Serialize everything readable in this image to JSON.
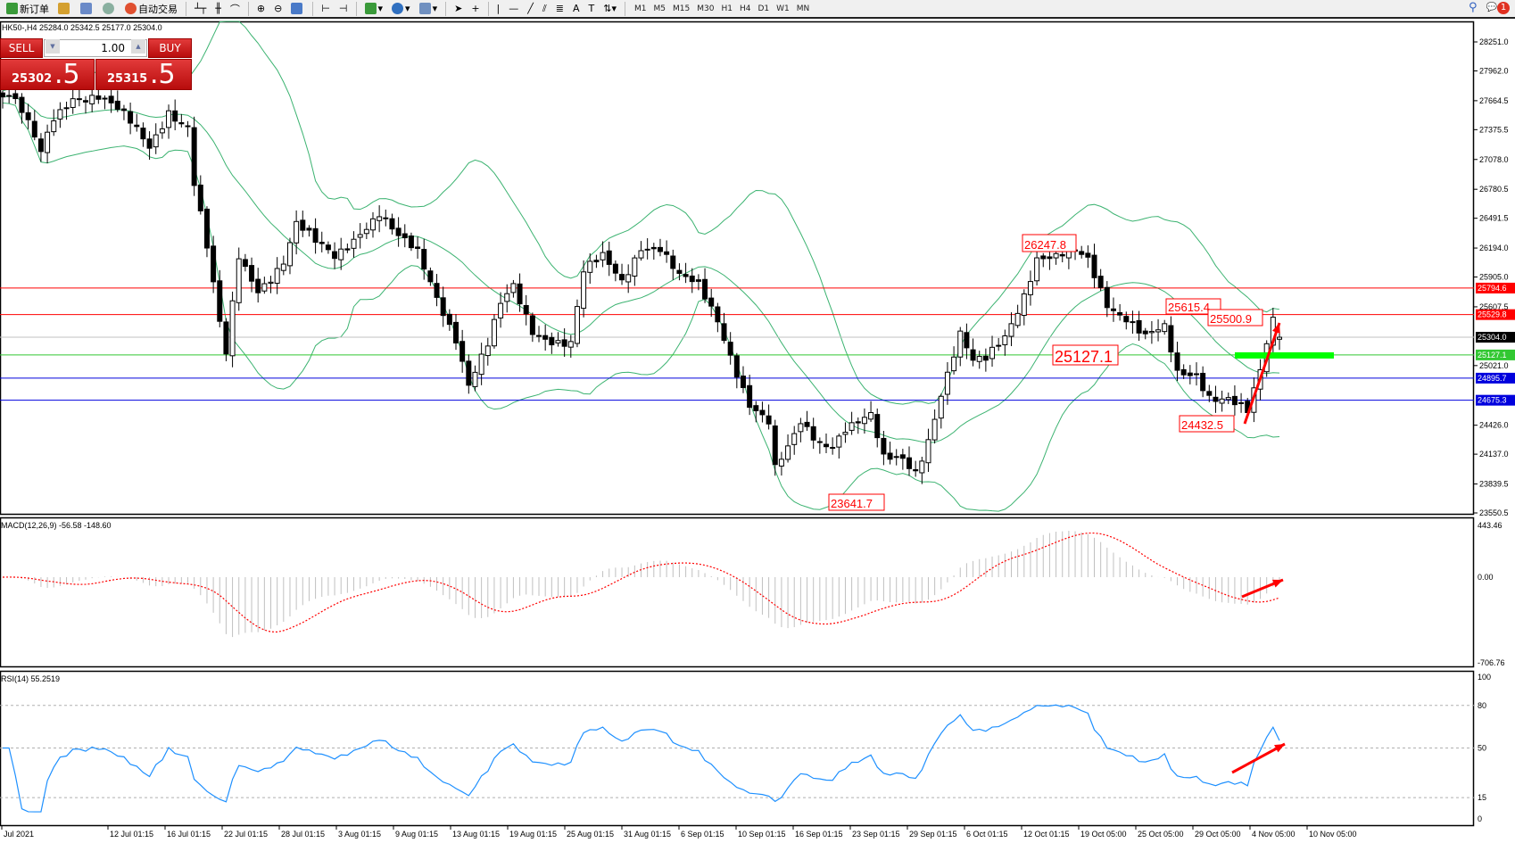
{
  "toolbar": {
    "new_order": "新订单",
    "auto_trading": "自动交易",
    "timeframes": [
      "M1",
      "M5",
      "M15",
      "M30",
      "H1",
      "H4",
      "D1",
      "W1",
      "MN"
    ],
    "notifications": "1"
  },
  "chart": {
    "title": "HK50-,H4  25284.0 25342.5 25177.0 25304.0",
    "symbol": "HK50-",
    "timeframe": "H4",
    "last_bar": {
      "open": 25284.0,
      "high": 25342.5,
      "low": 25177.0,
      "close": 25304.0
    }
  },
  "trade_panel": {
    "sell": "SELL",
    "buy": "BUY",
    "lot": "1.00",
    "bid_main": "25302",
    "bid_frac": ".5",
    "ask_main": "25315",
    "ask_frac": ".5"
  },
  "price_axis": {
    "ticks": [
      "28251.0",
      "27962.0",
      "27664.5",
      "27375.5",
      "27078.0",
      "26780.5",
      "26491.5",
      "26194.0",
      "25905.0",
      "25607.5",
      "25021.0",
      "24426.0",
      "24137.0",
      "23839.5",
      "23550.5"
    ],
    "max": 28251.0,
    "min": 23550.5
  },
  "levels": [
    {
      "value": "25794.6",
      "color": "#ff0000"
    },
    {
      "value": "25529.8",
      "color": "#ff0000"
    },
    {
      "value": "25304.0",
      "color": "#c0c0c0",
      "label_bg": "#000000"
    },
    {
      "value": "25127.1",
      "color": "#32c832"
    },
    {
      "value": "24895.7",
      "color": "#0000dd"
    },
    {
      "value": "24675.3",
      "color": "#0000dd"
    }
  ],
  "annotations": [
    {
      "text": "26247.8",
      "bar": 163
    },
    {
      "text": "25615.4",
      "bar": 184
    },
    {
      "text": "25500.9",
      "bar": 198
    },
    {
      "text": "25127.1",
      "bar": 170
    },
    {
      "text": "24432.5",
      "bar": 195
    },
    {
      "text": "23641.7",
      "bar": 138
    }
  ],
  "price_path": [
    [
      0,
      27702
    ],
    [
      1,
      27702
    ],
    [
      3,
      27510
    ],
    [
      6,
      27124
    ],
    [
      8,
      27510
    ],
    [
      11,
      27750
    ],
    [
      15,
      27700
    ],
    [
      20,
      27413
    ],
    [
      23,
      27220
    ],
    [
      26,
      27606
    ],
    [
      29,
      27413
    ],
    [
      30,
      26835
    ],
    [
      32,
      26161
    ],
    [
      34,
      25391
    ],
    [
      35,
      25102
    ],
    [
      37,
      26113
    ],
    [
      40,
      25824
    ],
    [
      44,
      26065
    ],
    [
      46,
      26402
    ],
    [
      49,
      26209
    ],
    [
      52,
      26113
    ],
    [
      56,
      26402
    ],
    [
      59,
      26547
    ],
    [
      62,
      26257
    ],
    [
      65,
      26113
    ],
    [
      68,
      25728
    ],
    [
      71,
      25343
    ],
    [
      73,
      24861
    ],
    [
      76,
      25198
    ],
    [
      78,
      25584
    ],
    [
      80,
      25776
    ],
    [
      83,
      25391
    ],
    [
      85,
      25343
    ],
    [
      89,
      25246
    ],
    [
      91,
      25920
    ],
    [
      94,
      26065
    ],
    [
      97,
      25872
    ],
    [
      100,
      26257
    ],
    [
      103,
      26209
    ],
    [
      106,
      25872
    ],
    [
      109,
      25776
    ],
    [
      112,
      25487
    ],
    [
      115,
      25006
    ],
    [
      117,
      24669
    ],
    [
      120,
      24428
    ],
    [
      121,
      23946
    ],
    [
      123,
      24139
    ],
    [
      125,
      24428
    ],
    [
      128,
      24284
    ],
    [
      130,
      24284
    ],
    [
      132,
      24428
    ],
    [
      136,
      24476
    ],
    [
      138,
      24042
    ],
    [
      141,
      24091
    ],
    [
      143,
      23995
    ],
    [
      145,
      24332
    ],
    [
      147,
      24765
    ],
    [
      150,
      25295
    ],
    [
      152,
      25006
    ],
    [
      154,
      25054
    ],
    [
      157,
      25343
    ],
    [
      160,
      25776
    ],
    [
      162,
      26113
    ],
    [
      165,
      26065
    ],
    [
      168,
      26113
    ],
    [
      170,
      26065
    ],
    [
      173,
      25680
    ],
    [
      176,
      25535
    ],
    [
      179,
      25295
    ],
    [
      182,
      25343
    ],
    [
      184,
      24909
    ],
    [
      187,
      24958
    ],
    [
      189,
      24765
    ],
    [
      192,
      24717
    ],
    [
      195,
      24524
    ],
    [
      197,
      24909
    ],
    [
      198,
      25198
    ],
    [
      199,
      25439
    ],
    [
      200,
      25304
    ]
  ],
  "macd": {
    "label": "MACD(12,26,9) -56.58 -148.60",
    "ticks": [
      "443.46",
      "0.00",
      "-706.76"
    ],
    "max": 443.46,
    "min": -706.76,
    "signal_color": "#ff0000",
    "hist_color": "#c0c0c0"
  },
  "rsi": {
    "label": "RSI(14) 55.2519",
    "ticks": [
      "100",
      "80",
      "50",
      "15",
      "0"
    ],
    "levels": [
      80,
      50,
      15
    ],
    "color": "#1e90ff"
  },
  "time_axis": [
    "Jul 2021",
    "12 Jul 01:15",
    "16 Jul 01:15",
    "22 Jul 01:15",
    "28 Jul 01:15",
    "3 Aug 01:15",
    "9 Aug 01:15",
    "13 Aug 01:15",
    "19 Aug 01:15",
    "25 Aug 01:15",
    "31 Aug 01:15",
    "6 Sep 01:15",
    "10 Sep 01:15",
    "16 Sep 01:15",
    "23 Sep 01:15",
    "29 Sep 01:15",
    "6 Oct 01:15",
    "12 Oct 01:15",
    "19 Oct 05:00",
    "25 Oct 05:00",
    "29 Oct 05:00",
    "4 Nov 05:00",
    "10 Nov 05:00"
  ],
  "colors": {
    "bands": "#3cb371",
    "highlight": "#00ff00",
    "arrow": "#ff0000",
    "annotation": "#ff0000"
  }
}
